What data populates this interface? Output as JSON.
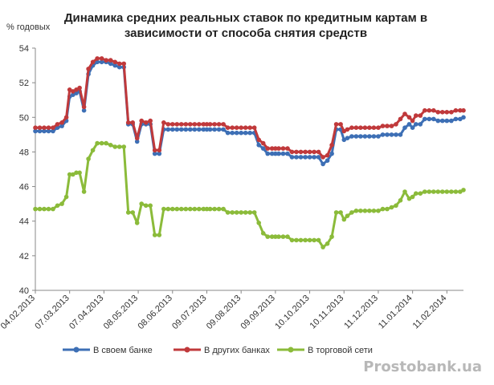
{
  "chart_data": {
    "type": "line",
    "title_line1": "Динамика средних реальных ставок по кредитным картам в",
    "title_line2": "зависимости от способа снятия средств",
    "ylabel": "% годовых",
    "ylim": [
      40,
      54
    ],
    "yticks": [
      "40",
      "42",
      "44",
      "46",
      "48",
      "50",
      "52",
      "54"
    ],
    "grid": false,
    "legend_position": "bottom",
    "x_tick_labels": [
      "04.02.2013",
      "07.03.2013",
      "07.04.2013",
      "08.05.2013",
      "08.06.2013",
      "09.07.2013",
      "09.08.2013",
      "09.09.2013",
      "10.10.2013",
      "10.11.2013",
      "11.12.2013",
      "11.01.2014",
      "11.02.2014"
    ],
    "x_tick_days": [
      0,
      31,
      62,
      93,
      124,
      155,
      186,
      217,
      248,
      279,
      310,
      341,
      372
    ],
    "series": [
      {
        "name": "В своем банке",
        "color": "#3d6fb5",
        "x": [
          0,
          4,
          8,
          12,
          16,
          20,
          24,
          28,
          31,
          34,
          37,
          40,
          44,
          48,
          52,
          56,
          60,
          64,
          68,
          72,
          76,
          80,
          84,
          88,
          92,
          96,
          100,
          104,
          108,
          112,
          116,
          120,
          124,
          128,
          132,
          136,
          140,
          144,
          148,
          152,
          155,
          158,
          162,
          166,
          170,
          174,
          178,
          182,
          186,
          190,
          194,
          198,
          202,
          206,
          210,
          214,
          217,
          220,
          224,
          228,
          232,
          236,
          240,
          244,
          248,
          252,
          256,
          260,
          264,
          268,
          272,
          276,
          279,
          282,
          286,
          290,
          294,
          298,
          302,
          306,
          310,
          314,
          318,
          322,
          326,
          330,
          334,
          338,
          341,
          344,
          348,
          352,
          356,
          360,
          364,
          368,
          372,
          376,
          380,
          384,
          387
        ],
        "values": [
          49.2,
          49.2,
          49.2,
          49.2,
          49.2,
          49.4,
          49.5,
          49.8,
          51.2,
          51.3,
          51.4,
          51.5,
          50.4,
          52.5,
          53.0,
          53.2,
          53.2,
          53.2,
          53.1,
          53.0,
          52.9,
          52.9,
          49.6,
          49.6,
          48.6,
          49.6,
          49.6,
          49.6,
          47.9,
          47.9,
          49.3,
          49.3,
          49.3,
          49.3,
          49.3,
          49.3,
          49.3,
          49.3,
          49.3,
          49.3,
          49.3,
          49.3,
          49.3,
          49.3,
          49.3,
          49.1,
          49.1,
          49.1,
          49.1,
          49.1,
          49.1,
          49.1,
          48.4,
          48.2,
          47.9,
          47.9,
          47.9,
          47.9,
          47.9,
          47.9,
          47.7,
          47.7,
          47.7,
          47.7,
          47.7,
          47.7,
          47.7,
          47.3,
          47.5,
          47.9,
          49.3,
          49.3,
          48.7,
          48.8,
          48.9,
          48.9,
          48.9,
          48.9,
          48.9,
          48.9,
          48.9,
          49.0,
          49.0,
          49.0,
          49.0,
          49.0,
          49.4,
          49.6,
          49.4,
          49.6,
          49.6,
          49.9,
          49.9,
          49.9,
          49.8,
          49.8,
          49.8,
          49.8,
          49.9,
          49.9,
          50.0
        ]
      },
      {
        "name": "В других банках",
        "color": "#c0393b",
        "x": [
          0,
          4,
          8,
          12,
          16,
          20,
          24,
          28,
          31,
          34,
          37,
          40,
          44,
          48,
          52,
          56,
          60,
          64,
          68,
          72,
          76,
          80,
          84,
          88,
          92,
          96,
          100,
          104,
          108,
          112,
          116,
          120,
          124,
          128,
          132,
          136,
          140,
          144,
          148,
          152,
          155,
          158,
          162,
          166,
          170,
          174,
          178,
          182,
          186,
          190,
          194,
          198,
          202,
          206,
          210,
          214,
          217,
          220,
          224,
          228,
          232,
          236,
          240,
          244,
          248,
          252,
          256,
          260,
          264,
          268,
          272,
          276,
          279,
          282,
          286,
          290,
          294,
          298,
          302,
          306,
          310,
          314,
          318,
          322,
          326,
          330,
          334,
          338,
          341,
          344,
          348,
          352,
          356,
          360,
          364,
          368,
          372,
          376,
          380,
          384,
          387
        ],
        "values": [
          49.4,
          49.4,
          49.4,
          49.4,
          49.4,
          49.6,
          49.7,
          50.0,
          51.6,
          51.5,
          51.6,
          51.7,
          50.6,
          52.8,
          53.2,
          53.4,
          53.4,
          53.3,
          53.3,
          53.2,
          53.1,
          53.1,
          49.7,
          49.7,
          48.8,
          49.8,
          49.7,
          49.8,
          48.1,
          48.1,
          49.7,
          49.6,
          49.6,
          49.6,
          49.6,
          49.6,
          49.6,
          49.6,
          49.6,
          49.6,
          49.6,
          49.6,
          49.6,
          49.6,
          49.6,
          49.4,
          49.4,
          49.4,
          49.4,
          49.4,
          49.4,
          49.4,
          48.7,
          48.5,
          48.2,
          48.2,
          48.2,
          48.2,
          48.2,
          48.2,
          48.0,
          48.0,
          48.0,
          48.0,
          48.0,
          48.0,
          48.0,
          47.7,
          47.8,
          48.4,
          49.6,
          49.6,
          49.2,
          49.3,
          49.4,
          49.4,
          49.4,
          49.4,
          49.4,
          49.4,
          49.4,
          49.5,
          49.5,
          49.5,
          49.6,
          49.9,
          50.2,
          50.0,
          49.8,
          50.1,
          50.1,
          50.4,
          50.4,
          50.4,
          50.3,
          50.3,
          50.3,
          50.3,
          50.4,
          50.4,
          50.4
        ]
      },
      {
        "name": "В торговой сети",
        "color": "#8bbb3a",
        "x": [
          0,
          4,
          8,
          12,
          16,
          20,
          24,
          28,
          31,
          34,
          37,
          40,
          44,
          48,
          52,
          56,
          60,
          64,
          68,
          72,
          76,
          80,
          84,
          88,
          92,
          96,
          100,
          104,
          108,
          112,
          116,
          120,
          124,
          128,
          132,
          136,
          140,
          144,
          148,
          152,
          155,
          158,
          162,
          166,
          170,
          174,
          178,
          182,
          186,
          190,
          194,
          198,
          202,
          206,
          210,
          214,
          217,
          220,
          224,
          228,
          232,
          236,
          240,
          244,
          248,
          252,
          256,
          260,
          264,
          268,
          272,
          276,
          279,
          282,
          286,
          290,
          294,
          298,
          302,
          306,
          310,
          314,
          318,
          322,
          326,
          330,
          334,
          338,
          341,
          344,
          348,
          352,
          356,
          360,
          364,
          368,
          372,
          376,
          380,
          384,
          387
        ],
        "values": [
          44.7,
          44.7,
          44.7,
          44.7,
          44.7,
          44.9,
          45.0,
          45.4,
          46.7,
          46.7,
          46.8,
          46.8,
          45.7,
          47.6,
          48.1,
          48.5,
          48.5,
          48.5,
          48.4,
          48.3,
          48.3,
          48.3,
          44.5,
          44.5,
          43.9,
          45.0,
          44.9,
          44.9,
          43.2,
          43.2,
          44.7,
          44.7,
          44.7,
          44.7,
          44.7,
          44.7,
          44.7,
          44.7,
          44.7,
          44.7,
          44.7,
          44.7,
          44.7,
          44.7,
          44.7,
          44.5,
          44.5,
          44.5,
          44.5,
          44.5,
          44.5,
          44.5,
          43.9,
          43.3,
          43.1,
          43.1,
          43.1,
          43.1,
          43.1,
          43.1,
          42.9,
          42.9,
          42.9,
          42.9,
          42.9,
          42.9,
          42.9,
          42.5,
          42.7,
          43.1,
          44.5,
          44.5,
          44.1,
          44.3,
          44.5,
          44.6,
          44.6,
          44.6,
          44.6,
          44.6,
          44.6,
          44.7,
          44.7,
          44.8,
          44.9,
          45.2,
          45.7,
          45.3,
          45.4,
          45.6,
          45.6,
          45.7,
          45.7,
          45.7,
          45.7,
          45.7,
          45.7,
          45.7,
          45.7,
          45.7,
          45.8
        ]
      }
    ]
  },
  "watermark": "Prostobank.ua"
}
